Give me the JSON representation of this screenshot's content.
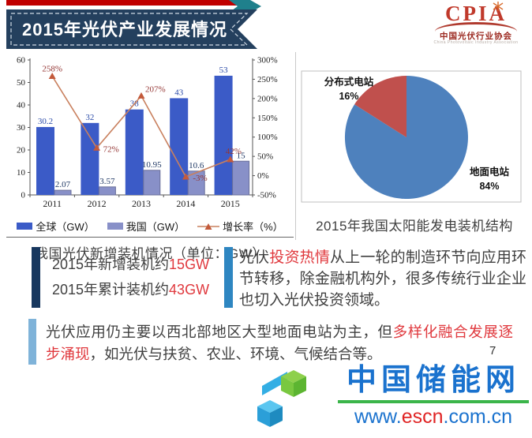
{
  "header": {
    "title": "2015年光伏产业发展情况",
    "logo": {
      "acronym": "CPIA",
      "name_cn": "中国光伏行业协会",
      "name_en": "China Photovoltaic Industry Association"
    }
  },
  "chart_data": [
    {
      "type": "bar+line",
      "caption": "我国光伏新增装机情况（单位：GW）",
      "categories": [
        "2011",
        "2012",
        "2013",
        "2014",
        "2015"
      ],
      "series": [
        {
          "name": "全球（GW）",
          "chart": "bar",
          "axis": "left",
          "color": "#3B5BC7",
          "label_color": "#2B4BA8",
          "values": [
            30.2,
            32,
            38,
            43,
            53
          ],
          "labels": [
            "30.2",
            "32",
            "38",
            "43",
            "53"
          ]
        },
        {
          "name": "我国（GW）",
          "chart": "bar",
          "axis": "left",
          "color": "#8890C8",
          "label_color": "#1F3864",
          "values": [
            2.07,
            3.57,
            10.95,
            10.6,
            15
          ],
          "labels": [
            "2.07",
            "3.57",
            "10.95",
            "10.6",
            "15"
          ]
        },
        {
          "name": "增长率（%）",
          "chart": "line",
          "axis": "right",
          "color": "#C9805E",
          "marker_color": "#C35A3B",
          "label_color": "#943634",
          "values": [
            258,
            72,
            207,
            -3,
            42
          ],
          "labels": [
            "258%",
            "72%",
            "207%",
            "-3%",
            "42%"
          ]
        }
      ],
      "left_axis": {
        "min": 0,
        "max": 60,
        "ticks": [
          "0",
          "10",
          "20",
          "30",
          "40",
          "50",
          "60"
        ]
      },
      "right_axis": {
        "min": -50,
        "max": 300,
        "ticks": [
          "-50%",
          "0%",
          "50%",
          "100%",
          "150%",
          "200%",
          "250%",
          "300%"
        ]
      },
      "legend_position": "bottom",
      "grid": false
    },
    {
      "type": "pie",
      "caption": "2015年我国太阳能发电装机结构",
      "slices": [
        {
          "label": "地面电站",
          "value": 84,
          "pct_label": "84%",
          "color": "#4E81BD"
        },
        {
          "label": "分布式电站",
          "value": 16,
          "pct_label": "16%",
          "color": "#C0504D"
        }
      ],
      "legend_position": "none"
    }
  ],
  "highlights": {
    "line1": {
      "prefix": "2015年新增装机约",
      "value": "15GW"
    },
    "line2": {
      "prefix": "2015年累计装机约",
      "value": "43GW"
    }
  },
  "investment_note": {
    "segments": [
      {
        "text": "光伏",
        "style": "normal"
      },
      {
        "text": "投资热情",
        "style": "red"
      },
      {
        "text": "从上一轮的制造环节向应用环节转移，除金融机构外，很多传统行业企业也切入光伏投资领域。",
        "style": "normal"
      }
    ]
  },
  "application_note": {
    "segments": [
      {
        "text": "光伏应用仍主要以西北部地区大型地面电站为主，但",
        "style": "normal"
      },
      {
        "text": "多样化融合发展逐步涌现",
        "style": "red"
      },
      {
        "text": "，如光伏与扶贫、农业、环境、气候结合等。",
        "style": "normal"
      }
    ]
  },
  "page_number": "7",
  "watermark": {
    "site_name": "中国储能网",
    "url_prefix": "www.",
    "url_highlight": "escn",
    "url_suffix": ".com.cn"
  },
  "colors": {
    "banner": "#24405E",
    "top_bar": "#C00000",
    "accent_teal": "#1F808C",
    "red_text": "#E0393E",
    "navy_bar": "#17375E",
    "mid_blue": "#2E86C1",
    "light_blue": "#7FB3D9",
    "brand_blue": "#1A72CE",
    "brand_green": "#3BB54A",
    "brand_red": "#E02424"
  }
}
